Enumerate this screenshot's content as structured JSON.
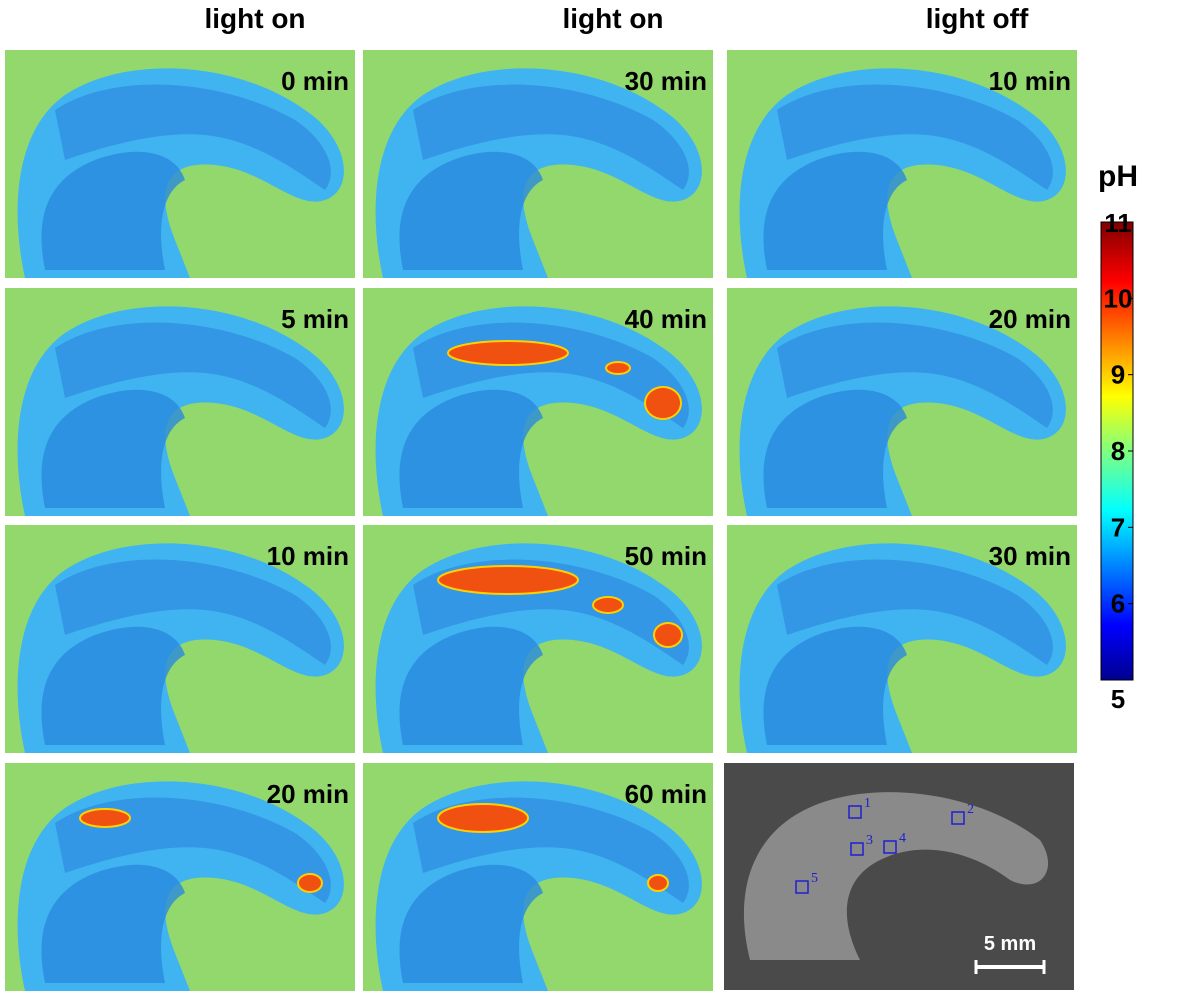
{
  "columns": [
    "light on",
    "light on",
    "light off"
  ],
  "panels": [
    [
      "0 min",
      "30 min",
      "10 min"
    ],
    [
      "5 min",
      "40 min",
      "20 min"
    ],
    [
      "10 min",
      "50 min",
      "30 min"
    ],
    [
      "20 min",
      "60 min"
    ]
  ],
  "colorbar": {
    "title": "pH",
    "lim": [
      5,
      11
    ],
    "ticks": [
      5,
      6,
      7,
      8,
      9,
      10,
      11
    ]
  },
  "photo": {
    "markers": [
      "1",
      "2",
      "3",
      "4",
      "5"
    ],
    "scale_bar": "5 mm"
  }
}
